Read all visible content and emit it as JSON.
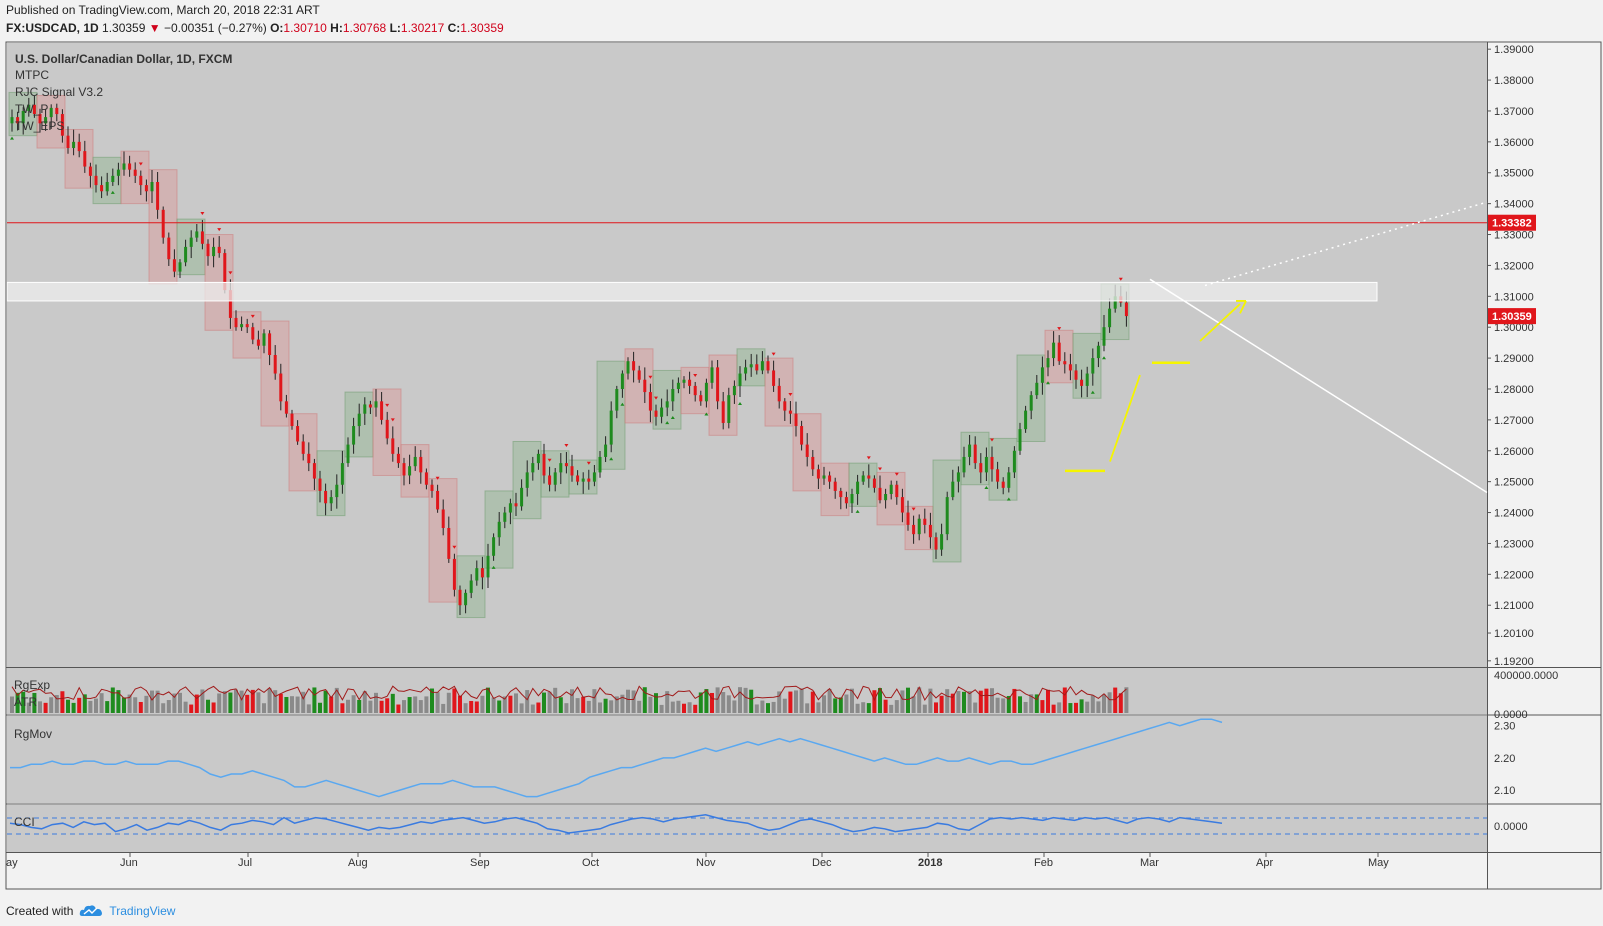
{
  "header": {
    "published": "Published on TradingView.com, March 20, 2018 22:31 ART",
    "symbol": "FX:USDCAD, 1D",
    "last": "1.30359",
    "change_arrow": "▼",
    "change": "−0.00351 (−0.27%)",
    "o_label": "O:",
    "o_value": "1.30710",
    "h_label": "H:",
    "h_value": "1.30768",
    "l_label": "L:",
    "l_value": "1.30217",
    "c_label": "C:",
    "c_value": "1.30359"
  },
  "legend": {
    "title": "U.S. Dollar/Canadian Dollar, 1D, FXCM",
    "indicators": [
      "MTPC",
      "RJC Signal V3.2",
      "TW_P",
      "TW_EPS"
    ]
  },
  "footer": {
    "created": "Created with",
    "brand": "TradingView",
    "logo_icon": "tradingview-cloud-icon"
  },
  "colors": {
    "up": "#1e8b1e",
    "down": "#e0161b",
    "bg": "#c9c9c9",
    "level": "#e0161b",
    "rgmov": "#5aa8f0",
    "cci": "#3a7be0"
  },
  "chart_data": [
    {
      "type": "candlestick",
      "title": "U.S. Dollar/Canadian Dollar, 1D, FXCM",
      "x_ticks": [
        "ay",
        "Jun",
        "Jul",
        "Aug",
        "Sep",
        "Oct",
        "Nov",
        "Dec",
        "2018",
        "Feb",
        "Mar",
        "Apr",
        "May"
      ],
      "y_ticks": [
        "1.39000",
        "1.38000",
        "1.37000",
        "1.36000",
        "1.35000",
        "1.34000",
        "1.33000",
        "1.32000",
        "1.31000",
        "1.30000",
        "1.29000",
        "1.28000",
        "1.27000",
        "1.26000",
        "1.25000",
        "1.24000",
        "1.23000",
        "1.22000",
        "1.21000",
        "1.20100",
        "1.19200"
      ],
      "ylim": [
        1.19,
        1.392
      ],
      "price_labels": [
        {
          "value": 1.33382,
          "label": "1.33382",
          "kind": "horizontal-line"
        },
        {
          "value": 1.30359,
          "label": "1.30359",
          "kind": "last-price"
        }
      ],
      "zone": [
        1.3085,
        1.3145
      ],
      "closes": [
        1.368,
        1.366,
        1.37,
        1.372,
        1.369,
        1.366,
        1.368,
        1.371,
        1.369,
        1.362,
        1.358,
        1.36,
        1.357,
        1.352,
        1.349,
        1.346,
        1.344,
        1.347,
        1.349,
        1.351,
        1.353,
        1.351,
        1.349,
        1.346,
        1.344,
        1.347,
        1.338,
        1.329,
        1.322,
        1.318,
        1.321,
        1.326,
        1.329,
        1.331,
        1.327,
        1.323,
        1.326,
        1.324,
        1.312,
        1.303,
        1.3,
        1.301,
        1.3,
        1.296,
        1.294,
        1.298,
        1.291,
        1.285,
        1.276,
        1.272,
        1.268,
        1.263,
        1.259,
        1.256,
        1.251,
        1.247,
        1.243,
        1.245,
        1.249,
        1.256,
        1.262,
        1.268,
        1.272,
        1.275,
        1.274,
        1.276,
        1.27,
        1.264,
        1.259,
        1.256,
        1.252,
        1.255,
        1.258,
        1.253,
        1.249,
        1.247,
        1.241,
        1.235,
        1.225,
        1.215,
        1.21,
        1.214,
        1.218,
        1.222,
        1.219,
        1.226,
        1.232,
        1.237,
        1.24,
        1.243,
        1.242,
        1.248,
        1.253,
        1.256,
        1.259,
        1.252,
        1.249,
        1.253,
        1.256,
        1.255,
        1.252,
        1.25,
        1.251,
        1.25,
        1.253,
        1.258,
        1.262,
        1.273,
        1.28,
        1.285,
        1.289,
        1.286,
        1.283,
        1.279,
        1.273,
        1.271,
        1.274,
        1.276,
        1.28,
        1.282,
        1.283,
        1.281,
        1.278,
        1.276,
        1.282,
        1.287,
        1.276,
        1.269,
        1.278,
        1.281,
        1.285,
        1.287,
        1.288,
        1.286,
        1.289,
        1.286,
        1.281,
        1.276,
        1.273,
        1.272,
        1.268,
        1.262,
        1.258,
        1.254,
        1.251,
        1.252,
        1.25,
        1.247,
        1.245,
        1.243,
        1.246,
        1.25,
        1.252,
        1.251,
        1.248,
        1.244,
        1.246,
        1.249,
        1.245,
        1.24,
        1.236,
        1.233,
        1.238,
        1.236,
        1.232,
        1.228,
        1.233,
        1.245,
        1.25,
        1.253,
        1.258,
        1.262,
        1.256,
        1.253,
        1.258,
        1.254,
        1.25,
        1.248,
        1.253,
        1.26,
        1.267,
        1.273,
        1.278,
        1.282,
        1.287,
        1.29,
        1.295,
        1.289,
        1.288,
        1.286,
        1.283,
        1.281,
        1.285,
        1.29,
        1.294,
        1.3,
        1.306,
        1.31,
        1.308,
        1.30359
      ]
    },
    {
      "type": "bar",
      "title": "RgExp",
      "label2": "ATR",
      "y_ticks": [
        "400000.0000",
        "0.0000"
      ],
      "ylim": [
        0,
        400000
      ]
    },
    {
      "type": "line",
      "title": "RgMov",
      "y_ticks": [
        "2.30",
        "2.20",
        "2.10"
      ],
      "ylim": [
        2.06,
        2.33
      ],
      "values": [
        2.17,
        2.17,
        2.18,
        2.18,
        2.19,
        2.18,
        2.18,
        2.19,
        2.19,
        2.18,
        2.18,
        2.19,
        2.18,
        2.18,
        2.18,
        2.19,
        2.19,
        2.18,
        2.17,
        2.15,
        2.14,
        2.15,
        2.15,
        2.16,
        2.15,
        2.14,
        2.13,
        2.11,
        2.11,
        2.12,
        2.13,
        2.12,
        2.11,
        2.1,
        2.09,
        2.08,
        2.09,
        2.1,
        2.11,
        2.12,
        2.12,
        2.12,
        2.13,
        2.12,
        2.11,
        2.11,
        2.11,
        2.1,
        2.09,
        2.08,
        2.08,
        2.09,
        2.1,
        2.11,
        2.12,
        2.14,
        2.15,
        2.16,
        2.17,
        2.17,
        2.18,
        2.19,
        2.2,
        2.2,
        2.21,
        2.22,
        2.23,
        2.22,
        2.23,
        2.24,
        2.25,
        2.24,
        2.25,
        2.26,
        2.25,
        2.26,
        2.25,
        2.24,
        2.23,
        2.22,
        2.21,
        2.2,
        2.19,
        2.2,
        2.19,
        2.18,
        2.18,
        2.19,
        2.2,
        2.19,
        2.19,
        2.2,
        2.19,
        2.18,
        2.19,
        2.19,
        2.18,
        2.18,
        2.19,
        2.2,
        2.21,
        2.22,
        2.23,
        2.24,
        2.25,
        2.26,
        2.27,
        2.28,
        2.29,
        2.3,
        2.31,
        2.3,
        2.31,
        2.32,
        2.32,
        2.31
      ]
    },
    {
      "type": "line",
      "title": "CCI",
      "y_ticks": [
        "0.0000"
      ],
      "ylim": [
        -1,
        1
      ],
      "values": [
        0.2,
        0.1,
        -0.1,
        -0.2,
        0.1,
        0.2,
        -0.1,
        0.3,
        0.1,
        0.2,
        -0.4,
        -0.2,
        0.1,
        -0.3,
        -0.1,
        0.2,
        0.1,
        0.4,
        0.2,
        -0.1,
        -0.3,
        0.1,
        0.2,
        0.4,
        0.3,
        0.1,
        0.6,
        0.2,
        0.4,
        0.6,
        0.5,
        0.3,
        0.1,
        -0.1,
        -0.3,
        -0.1,
        -0.2,
        -0.1,
        0.1,
        0.3,
        0.2,
        0.4,
        0.5,
        0.6,
        0.4,
        0.2,
        0.3,
        0.5,
        0.6,
        0.4,
        0.2,
        -0.2,
        -0.3,
        -0.5,
        -0.4,
        -0.3,
        -0.2,
        0.1,
        0.3,
        0.5,
        0.6,
        0.5,
        0.3,
        0.5,
        0.6,
        0.7,
        0.8,
        0.6,
        0.4,
        0.3,
        0.2,
        -0.1,
        -0.3,
        -0.2,
        0.1,
        0.4,
        0.5,
        0.3,
        0.1,
        -0.2,
        -0.4,
        -0.3,
        -0.1,
        -0.2,
        -0.4,
        -0.3,
        -0.2,
        -0.1,
        0.2,
        0.1,
        -0.2,
        -0.3,
        0.1,
        0.5,
        0.6,
        0.5,
        0.6,
        0.5,
        0.4,
        0.6,
        0.5,
        0.4,
        0.6,
        0.5,
        0.6,
        0.4,
        0.2,
        0.5,
        0.6,
        0.5,
        0.3,
        0.6,
        0.5,
        0.4,
        0.3,
        0.2
      ]
    }
  ]
}
